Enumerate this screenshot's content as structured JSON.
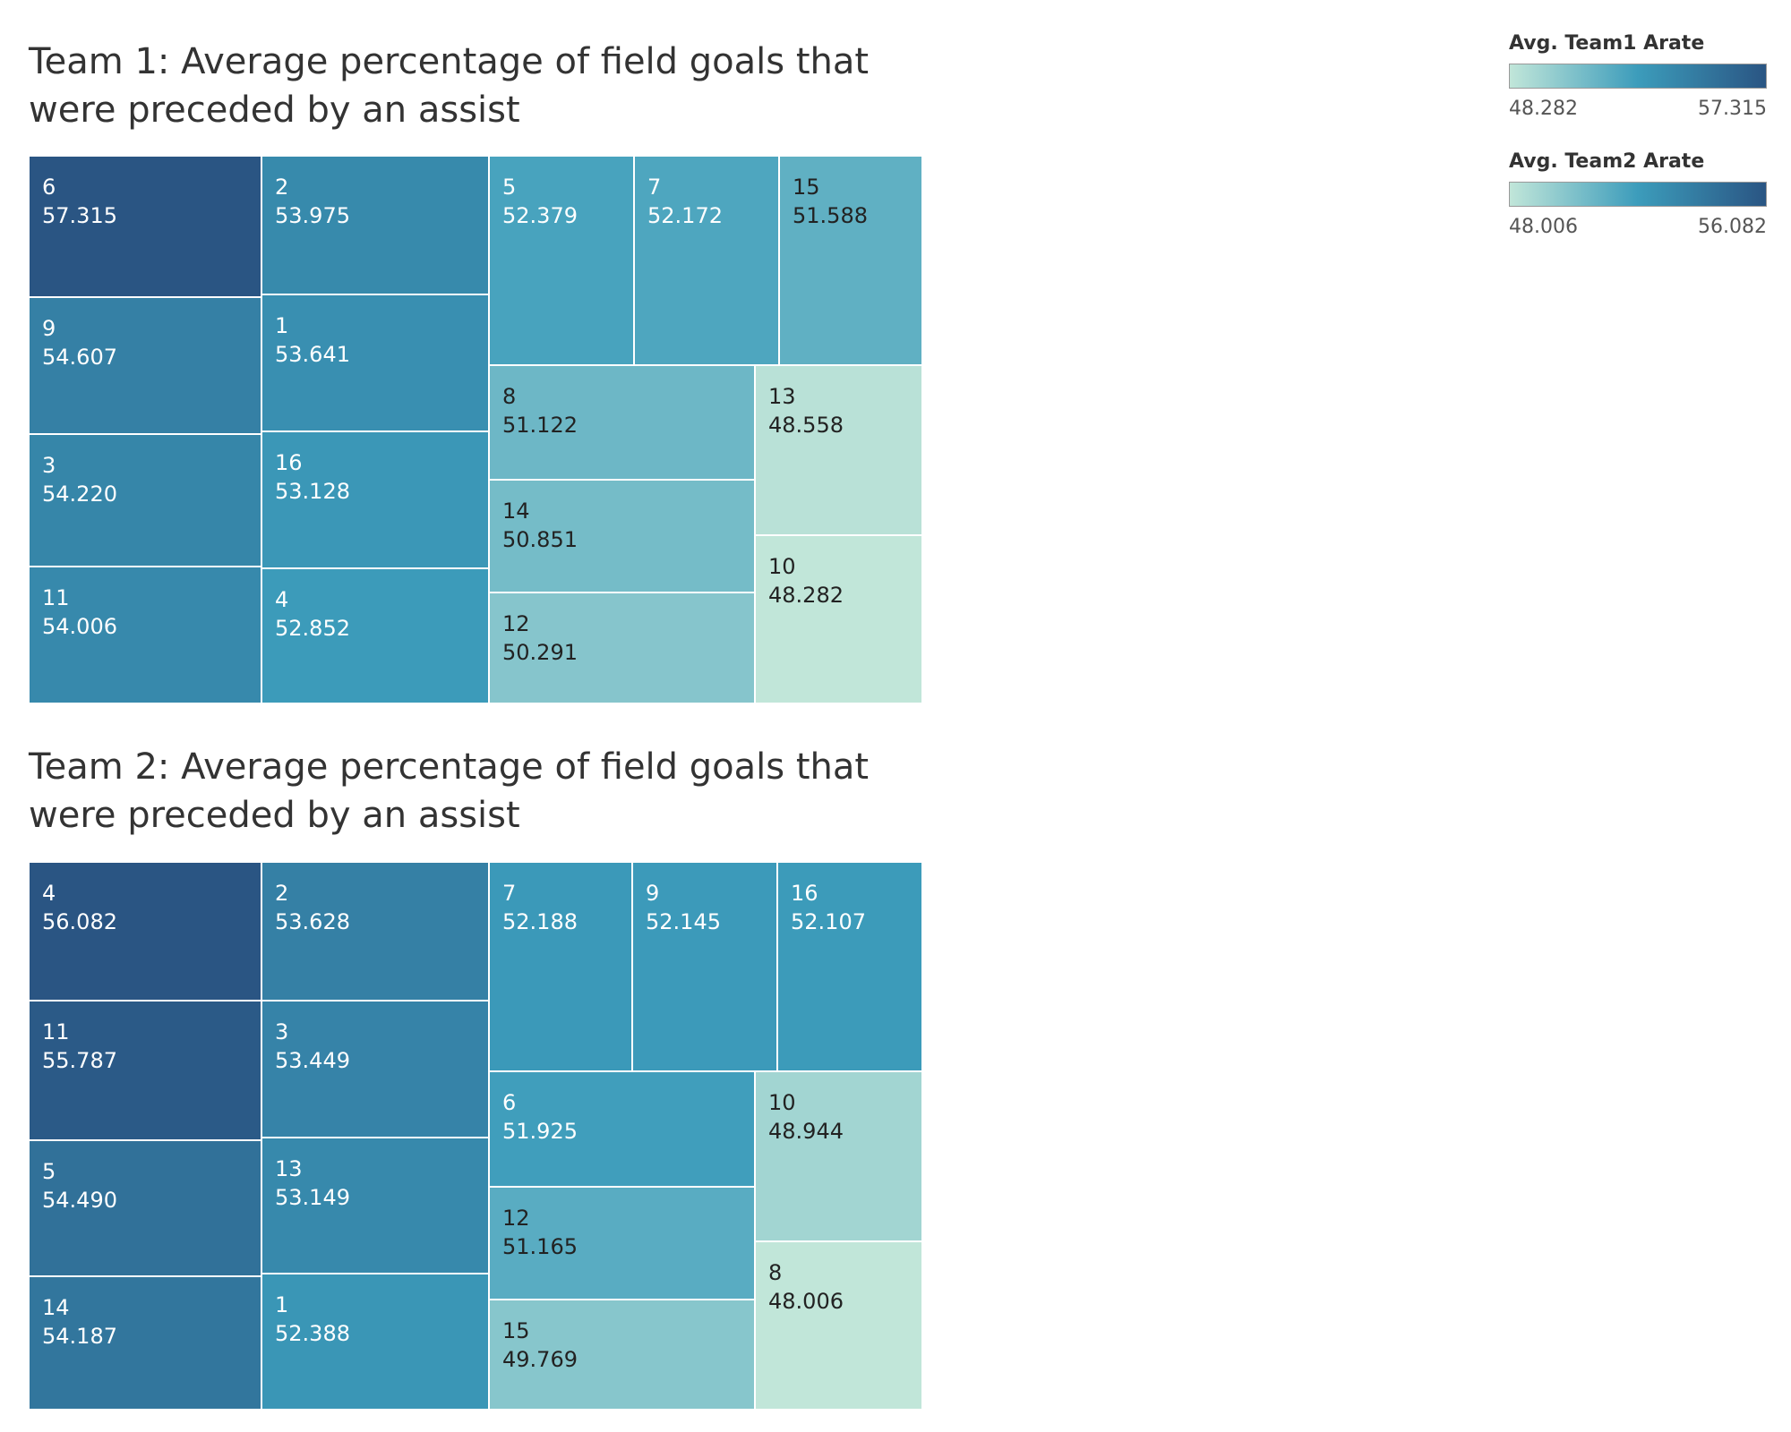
{
  "chart_data": [
    {
      "type": "treemap",
      "title": "Team 1: Average percentage of field goals that were preceded by an assist",
      "categories": [
        "6",
        "2",
        "5",
        "7",
        "15",
        "9",
        "1",
        "3",
        "16",
        "11",
        "4",
        "8",
        "13",
        "14",
        "10",
        "12"
      ],
      "values": [
        57.315,
        53.975,
        52.379,
        52.172,
        51.588,
        54.607,
        53.641,
        54.22,
        53.128,
        54.006,
        52.852,
        51.122,
        48.558,
        50.851,
        48.282,
        50.291
      ],
      "tiles": [
        {
          "label": "6",
          "value": "57.315"
        },
        {
          "label": "9",
          "value": "54.607"
        },
        {
          "label": "3",
          "value": "54.220"
        },
        {
          "label": "11",
          "value": "54.006"
        },
        {
          "label": "2",
          "value": "53.975"
        },
        {
          "label": "1",
          "value": "53.641"
        },
        {
          "label": "16",
          "value": "53.128"
        },
        {
          "label": "4",
          "value": "52.852"
        },
        {
          "label": "5",
          "value": "52.379"
        },
        {
          "label": "7",
          "value": "52.172"
        },
        {
          "label": "15",
          "value": "51.588"
        },
        {
          "label": "8",
          "value": "51.122"
        },
        {
          "label": "14",
          "value": "50.851"
        },
        {
          "label": "12",
          "value": "50.291"
        },
        {
          "label": "13",
          "value": "48.558"
        },
        {
          "label": "10",
          "value": "48.282"
        }
      ],
      "color_range": [
        48.282,
        57.315
      ]
    },
    {
      "type": "treemap",
      "title": "Team 2: Average percentage of field goals that were preceded by an assist",
      "categories": [
        "4",
        "2",
        "7",
        "9",
        "16",
        "11",
        "3",
        "5",
        "13",
        "14",
        "1",
        "6",
        "10",
        "12",
        "8",
        "15"
      ],
      "values": [
        56.082,
        53.628,
        52.188,
        52.145,
        52.107,
        55.787,
        53.449,
        54.49,
        53.149,
        54.187,
        52.388,
        51.925,
        48.944,
        51.165,
        48.006,
        49.769
      ],
      "tiles": [
        {
          "label": "4",
          "value": "56.082"
        },
        {
          "label": "11",
          "value": "55.787"
        },
        {
          "label": "5",
          "value": "54.490"
        },
        {
          "label": "14",
          "value": "54.187"
        },
        {
          "label": "2",
          "value": "53.628"
        },
        {
          "label": "3",
          "value": "53.449"
        },
        {
          "label": "13",
          "value": "53.149"
        },
        {
          "label": "1",
          "value": "52.388"
        },
        {
          "label": "7",
          "value": "52.188"
        },
        {
          "label": "9",
          "value": "52.145"
        },
        {
          "label": "16",
          "value": "52.107"
        },
        {
          "label": "6",
          "value": "51.925"
        },
        {
          "label": "12",
          "value": "51.165"
        },
        {
          "label": "15",
          "value": "49.769"
        },
        {
          "label": "10",
          "value": "48.944"
        },
        {
          "label": "8",
          "value": "48.006"
        }
      ],
      "color_range": [
        48.006,
        56.082
      ]
    }
  ],
  "legend": [
    {
      "title": "Avg. Team1 Arate",
      "min": "48.282",
      "max": "57.315"
    },
    {
      "title": "Avg. Team2 Arate",
      "min": "48.006",
      "max": "56.082"
    }
  ],
  "colors": {
    "low": "#c1e6d9",
    "mid": "#3c9cbb",
    "high": "#2a5583",
    "dark_text": "#222222",
    "light_text": "#ffffff"
  }
}
